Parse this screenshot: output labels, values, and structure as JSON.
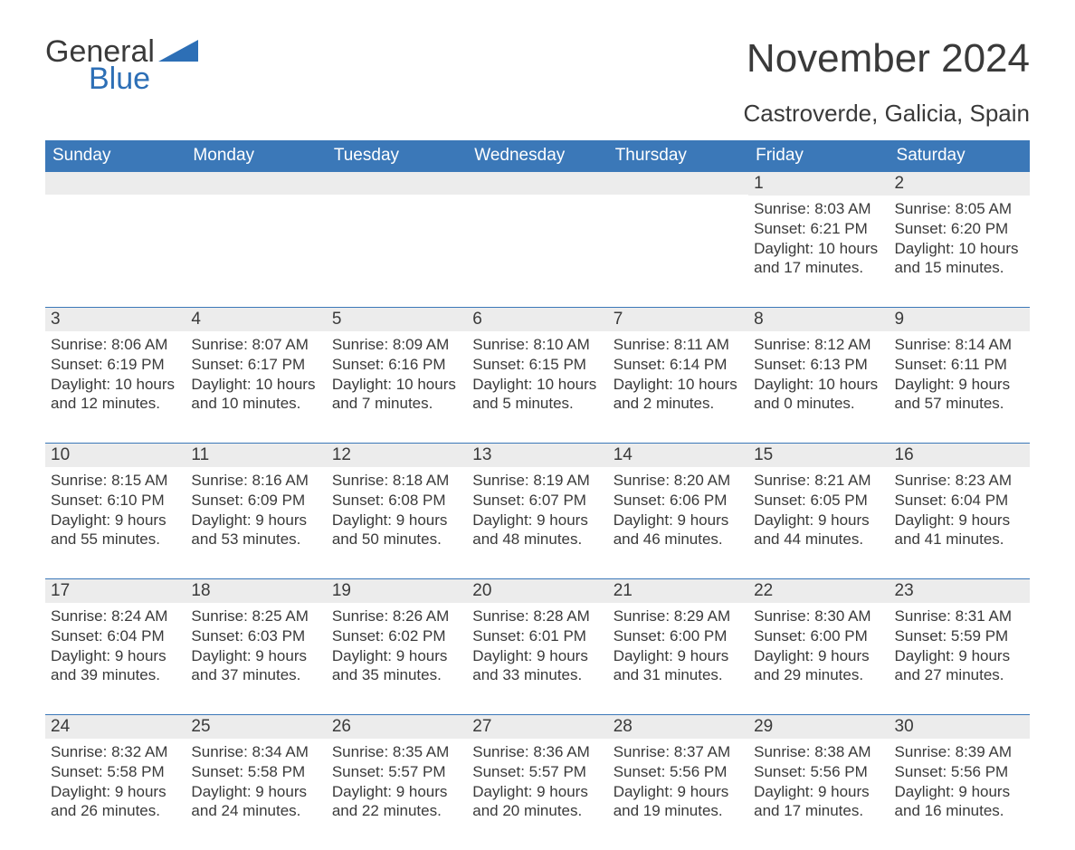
{
  "brand": {
    "word1": "General",
    "word2": "Blue",
    "word1_color": "#3a3a3a",
    "word2_color": "#2d6fb6",
    "triangle_color": "#2d6fb6"
  },
  "colors": {
    "header_bg": "#3b78b8",
    "header_text": "#ffffff",
    "daynum_bg": "#ececec",
    "daynum_border": "#3b78b8",
    "text": "#3a3a3a",
    "page_bg": "#ffffff"
  },
  "typography": {
    "title_fontsize": 44,
    "subtitle_fontsize": 26,
    "weekday_fontsize": 19,
    "daynum_fontsize": 19,
    "body_fontsize": 17
  },
  "title": "November 2024",
  "subtitle": "Castroverde, Galicia, Spain",
  "weekdays": [
    "Sunday",
    "Monday",
    "Tuesday",
    "Wednesday",
    "Thursday",
    "Friday",
    "Saturday"
  ],
  "weeks": [
    [
      {
        "day": "",
        "sunrise": "",
        "sunset": "",
        "daylight1": "",
        "daylight2": ""
      },
      {
        "day": "",
        "sunrise": "",
        "sunset": "",
        "daylight1": "",
        "daylight2": ""
      },
      {
        "day": "",
        "sunrise": "",
        "sunset": "",
        "daylight1": "",
        "daylight2": ""
      },
      {
        "day": "",
        "sunrise": "",
        "sunset": "",
        "daylight1": "",
        "daylight2": ""
      },
      {
        "day": "",
        "sunrise": "",
        "sunset": "",
        "daylight1": "",
        "daylight2": ""
      },
      {
        "day": "1",
        "sunrise": "Sunrise: 8:03 AM",
        "sunset": "Sunset: 6:21 PM",
        "daylight1": "Daylight: 10 hours",
        "daylight2": "and 17 minutes."
      },
      {
        "day": "2",
        "sunrise": "Sunrise: 8:05 AM",
        "sunset": "Sunset: 6:20 PM",
        "daylight1": "Daylight: 10 hours",
        "daylight2": "and 15 minutes."
      }
    ],
    [
      {
        "day": "3",
        "sunrise": "Sunrise: 8:06 AM",
        "sunset": "Sunset: 6:19 PM",
        "daylight1": "Daylight: 10 hours",
        "daylight2": "and 12 minutes."
      },
      {
        "day": "4",
        "sunrise": "Sunrise: 8:07 AM",
        "sunset": "Sunset: 6:17 PM",
        "daylight1": "Daylight: 10 hours",
        "daylight2": "and 10 minutes."
      },
      {
        "day": "5",
        "sunrise": "Sunrise: 8:09 AM",
        "sunset": "Sunset: 6:16 PM",
        "daylight1": "Daylight: 10 hours",
        "daylight2": "and 7 minutes."
      },
      {
        "day": "6",
        "sunrise": "Sunrise: 8:10 AM",
        "sunset": "Sunset: 6:15 PM",
        "daylight1": "Daylight: 10 hours",
        "daylight2": "and 5 minutes."
      },
      {
        "day": "7",
        "sunrise": "Sunrise: 8:11 AM",
        "sunset": "Sunset: 6:14 PM",
        "daylight1": "Daylight: 10 hours",
        "daylight2": "and 2 minutes."
      },
      {
        "day": "8",
        "sunrise": "Sunrise: 8:12 AM",
        "sunset": "Sunset: 6:13 PM",
        "daylight1": "Daylight: 10 hours",
        "daylight2": "and 0 minutes."
      },
      {
        "day": "9",
        "sunrise": "Sunrise: 8:14 AM",
        "sunset": "Sunset: 6:11 PM",
        "daylight1": "Daylight: 9 hours",
        "daylight2": "and 57 minutes."
      }
    ],
    [
      {
        "day": "10",
        "sunrise": "Sunrise: 8:15 AM",
        "sunset": "Sunset: 6:10 PM",
        "daylight1": "Daylight: 9 hours",
        "daylight2": "and 55 minutes."
      },
      {
        "day": "11",
        "sunrise": "Sunrise: 8:16 AM",
        "sunset": "Sunset: 6:09 PM",
        "daylight1": "Daylight: 9 hours",
        "daylight2": "and 53 minutes."
      },
      {
        "day": "12",
        "sunrise": "Sunrise: 8:18 AM",
        "sunset": "Sunset: 6:08 PM",
        "daylight1": "Daylight: 9 hours",
        "daylight2": "and 50 minutes."
      },
      {
        "day": "13",
        "sunrise": "Sunrise: 8:19 AM",
        "sunset": "Sunset: 6:07 PM",
        "daylight1": "Daylight: 9 hours",
        "daylight2": "and 48 minutes."
      },
      {
        "day": "14",
        "sunrise": "Sunrise: 8:20 AM",
        "sunset": "Sunset: 6:06 PM",
        "daylight1": "Daylight: 9 hours",
        "daylight2": "and 46 minutes."
      },
      {
        "day": "15",
        "sunrise": "Sunrise: 8:21 AM",
        "sunset": "Sunset: 6:05 PM",
        "daylight1": "Daylight: 9 hours",
        "daylight2": "and 44 minutes."
      },
      {
        "day": "16",
        "sunrise": "Sunrise: 8:23 AM",
        "sunset": "Sunset: 6:04 PM",
        "daylight1": "Daylight: 9 hours",
        "daylight2": "and 41 minutes."
      }
    ],
    [
      {
        "day": "17",
        "sunrise": "Sunrise: 8:24 AM",
        "sunset": "Sunset: 6:04 PM",
        "daylight1": "Daylight: 9 hours",
        "daylight2": "and 39 minutes."
      },
      {
        "day": "18",
        "sunrise": "Sunrise: 8:25 AM",
        "sunset": "Sunset: 6:03 PM",
        "daylight1": "Daylight: 9 hours",
        "daylight2": "and 37 minutes."
      },
      {
        "day": "19",
        "sunrise": "Sunrise: 8:26 AM",
        "sunset": "Sunset: 6:02 PM",
        "daylight1": "Daylight: 9 hours",
        "daylight2": "and 35 minutes."
      },
      {
        "day": "20",
        "sunrise": "Sunrise: 8:28 AM",
        "sunset": "Sunset: 6:01 PM",
        "daylight1": "Daylight: 9 hours",
        "daylight2": "and 33 minutes."
      },
      {
        "day": "21",
        "sunrise": "Sunrise: 8:29 AM",
        "sunset": "Sunset: 6:00 PM",
        "daylight1": "Daylight: 9 hours",
        "daylight2": "and 31 minutes."
      },
      {
        "day": "22",
        "sunrise": "Sunrise: 8:30 AM",
        "sunset": "Sunset: 6:00 PM",
        "daylight1": "Daylight: 9 hours",
        "daylight2": "and 29 minutes."
      },
      {
        "day": "23",
        "sunrise": "Sunrise: 8:31 AM",
        "sunset": "Sunset: 5:59 PM",
        "daylight1": "Daylight: 9 hours",
        "daylight2": "and 27 minutes."
      }
    ],
    [
      {
        "day": "24",
        "sunrise": "Sunrise: 8:32 AM",
        "sunset": "Sunset: 5:58 PM",
        "daylight1": "Daylight: 9 hours",
        "daylight2": "and 26 minutes."
      },
      {
        "day": "25",
        "sunrise": "Sunrise: 8:34 AM",
        "sunset": "Sunset: 5:58 PM",
        "daylight1": "Daylight: 9 hours",
        "daylight2": "and 24 minutes."
      },
      {
        "day": "26",
        "sunrise": "Sunrise: 8:35 AM",
        "sunset": "Sunset: 5:57 PM",
        "daylight1": "Daylight: 9 hours",
        "daylight2": "and 22 minutes."
      },
      {
        "day": "27",
        "sunrise": "Sunrise: 8:36 AM",
        "sunset": "Sunset: 5:57 PM",
        "daylight1": "Daylight: 9 hours",
        "daylight2": "and 20 minutes."
      },
      {
        "day": "28",
        "sunrise": "Sunrise: 8:37 AM",
        "sunset": "Sunset: 5:56 PM",
        "daylight1": "Daylight: 9 hours",
        "daylight2": "and 19 minutes."
      },
      {
        "day": "29",
        "sunrise": "Sunrise: 8:38 AM",
        "sunset": "Sunset: 5:56 PM",
        "daylight1": "Daylight: 9 hours",
        "daylight2": "and 17 minutes."
      },
      {
        "day": "30",
        "sunrise": "Sunrise: 8:39 AM",
        "sunset": "Sunset: 5:56 PM",
        "daylight1": "Daylight: 9 hours",
        "daylight2": "and 16 minutes."
      }
    ]
  ]
}
